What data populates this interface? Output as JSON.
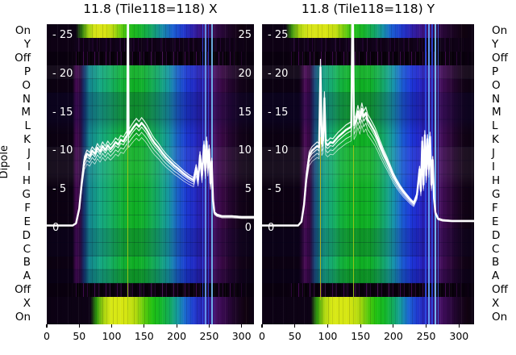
{
  "figure": {
    "dipole_axis_label": "Dipole",
    "dipole_rows": [
      "On",
      "Y",
      "Off",
      "P",
      "O",
      "N",
      "M",
      "L",
      "K",
      "J",
      "I",
      "H",
      "G",
      "F",
      "E",
      "D",
      "C",
      "B",
      "A",
      "Off",
      "X",
      "On"
    ],
    "x_tick_labels": [
      "0",
      "50",
      "100",
      "150",
      "200",
      "250",
      "300"
    ],
    "db_ticks_left_labels": [
      "- 25",
      "- 20",
      "- 15",
      "- 10",
      "- 5",
      "0"
    ],
    "db_ticks_right_labels": [
      "25",
      "20",
      "15",
      "10",
      "5",
      "0"
    ]
  },
  "chart_data": {
    "type": "heatmap",
    "subtype": "dipole spectrum waterfall with white overlay power curves",
    "colormap": "nipy_spectral-like (black-purple-blue-cyan-green-yellow)",
    "accent_colors": {
      "curve": "#ffffff",
      "background": "#ffffff",
      "dark_cell": "#0b0110",
      "green_band": "#0fae24",
      "yellow_band": "#d8e816",
      "blue_band": "#1c38d2"
    },
    "x_axis": {
      "unit": "channel",
      "range": [
        0,
        320
      ],
      "ticks": [
        0,
        50,
        100,
        150,
        200,
        250,
        300
      ]
    },
    "y_axis": {
      "label": "Dipole",
      "rows": [
        "On",
        "Y",
        "Off",
        "P",
        "O",
        "N",
        "M",
        "L",
        "K",
        "J",
        "I",
        "H",
        "G",
        "F",
        "E",
        "D",
        "C",
        "B",
        "A",
        "Off",
        "X",
        "On"
      ]
    },
    "db_scale_ticks": [
      25,
      20,
      15,
      10,
      5,
      0
    ],
    "panels": [
      {
        "title": "11.8 (Tile118=118) X",
        "pol": "X",
        "overlay_curve_db": [
          [
            0,
            0.3
          ],
          [
            20,
            0.3
          ],
          [
            40,
            0.3
          ],
          [
            45,
            0.6
          ],
          [
            50,
            2.5
          ],
          [
            54,
            6
          ],
          [
            58,
            8.8
          ],
          [
            62,
            9.6
          ],
          [
            66,
            9.3
          ],
          [
            70,
            10
          ],
          [
            74,
            9.6
          ],
          [
            78,
            10.4
          ],
          [
            82,
            9.9
          ],
          [
            86,
            10.6
          ],
          [
            90,
            10.1
          ],
          [
            94,
            10.7
          ],
          [
            98,
            10.2
          ],
          [
            102,
            10.6
          ],
          [
            106,
            11.1
          ],
          [
            110,
            10.8
          ],
          [
            114,
            11.4
          ],
          [
            118,
            11.2
          ],
          [
            122,
            11.8
          ],
          [
            124,
            12
          ],
          [
            125,
            32
          ],
          [
            126,
            12.1
          ],
          [
            130,
            12.6
          ],
          [
            134,
            13.1
          ],
          [
            138,
            13.5
          ],
          [
            142,
            13.1
          ],
          [
            146,
            13.6
          ],
          [
            150,
            13.2
          ],
          [
            154,
            12.7
          ],
          [
            158,
            12.1
          ],
          [
            162,
            11.5
          ],
          [
            166,
            11
          ],
          [
            172,
            10.4
          ],
          [
            178,
            9.7
          ],
          [
            184,
            9.1
          ],
          [
            190,
            8.6
          ],
          [
            196,
            8.1
          ],
          [
            202,
            7.7
          ],
          [
            210,
            7.1
          ],
          [
            218,
            6.6
          ],
          [
            226,
            6.2
          ],
          [
            230,
            7.8
          ],
          [
            233,
            6.3
          ],
          [
            236,
            9.4
          ],
          [
            239,
            6.8
          ],
          [
            242,
            10.7
          ],
          [
            244,
            7.4
          ],
          [
            246,
            11.2
          ],
          [
            248,
            7.8
          ],
          [
            250,
            10.2
          ],
          [
            252,
            5.8
          ],
          [
            254,
            8.6
          ],
          [
            256,
            3.6
          ],
          [
            258,
            2
          ],
          [
            262,
            1.7
          ],
          [
            270,
            1.5
          ],
          [
            285,
            1.5
          ],
          [
            300,
            1.4
          ],
          [
            319,
            1.4
          ]
        ]
      },
      {
        "title": "11.8 (Tile118=118) Y",
        "pol": "Y",
        "overlay_curve_db": [
          [
            0,
            0.3
          ],
          [
            30,
            0.3
          ],
          [
            55,
            0.3
          ],
          [
            60,
            0.8
          ],
          [
            64,
            3
          ],
          [
            68,
            7
          ],
          [
            72,
            9.4
          ],
          [
            76,
            10
          ],
          [
            80,
            10.3
          ],
          [
            84,
            10.6
          ],
          [
            87,
            10.4
          ],
          [
            89,
            20.8
          ],
          [
            91,
            10.9
          ],
          [
            93,
            11.3
          ],
          [
            95,
            16.8
          ],
          [
            97,
            11
          ],
          [
            100,
            10.7
          ],
          [
            104,
            11.1
          ],
          [
            108,
            11
          ],
          [
            112,
            11.4
          ],
          [
            116,
            11.8
          ],
          [
            120,
            12.1
          ],
          [
            124,
            12.4
          ],
          [
            128,
            12.7
          ],
          [
            132,
            12.9
          ],
          [
            136,
            13.1
          ],
          [
            138,
            32
          ],
          [
            140,
            13.3
          ],
          [
            143,
            13.9
          ],
          [
            146,
            15.1
          ],
          [
            149,
            14.1
          ],
          [
            152,
            15.4
          ],
          [
            155,
            14.4
          ],
          [
            158,
            14.9
          ],
          [
            161,
            14
          ],
          [
            164,
            13.6
          ],
          [
            168,
            13
          ],
          [
            172,
            12.4
          ],
          [
            176,
            11.6
          ],
          [
            180,
            10.7
          ],
          [
            185,
            9.7
          ],
          [
            190,
            8.8
          ],
          [
            195,
            7.8
          ],
          [
            200,
            6.8
          ],
          [
            205,
            6
          ],
          [
            210,
            5.3
          ],
          [
            215,
            4.7
          ],
          [
            220,
            4.2
          ],
          [
            226,
            3.6
          ],
          [
            231,
            3.2
          ],
          [
            236,
            4.3
          ],
          [
            240,
            7.6
          ],
          [
            242,
            4.8
          ],
          [
            244,
            11.2
          ],
          [
            246,
            5.6
          ],
          [
            248,
            12
          ],
          [
            250,
            6.8
          ],
          [
            252,
            11.5
          ],
          [
            254,
            7.6
          ],
          [
            256,
            11.8
          ],
          [
            258,
            5.6
          ],
          [
            260,
            8.8
          ],
          [
            262,
            3.8
          ],
          [
            264,
            2
          ],
          [
            268,
            1.2
          ],
          [
            275,
            1
          ],
          [
            290,
            0.9
          ],
          [
            305,
            0.9
          ],
          [
            323,
            0.9
          ]
        ]
      }
    ]
  }
}
